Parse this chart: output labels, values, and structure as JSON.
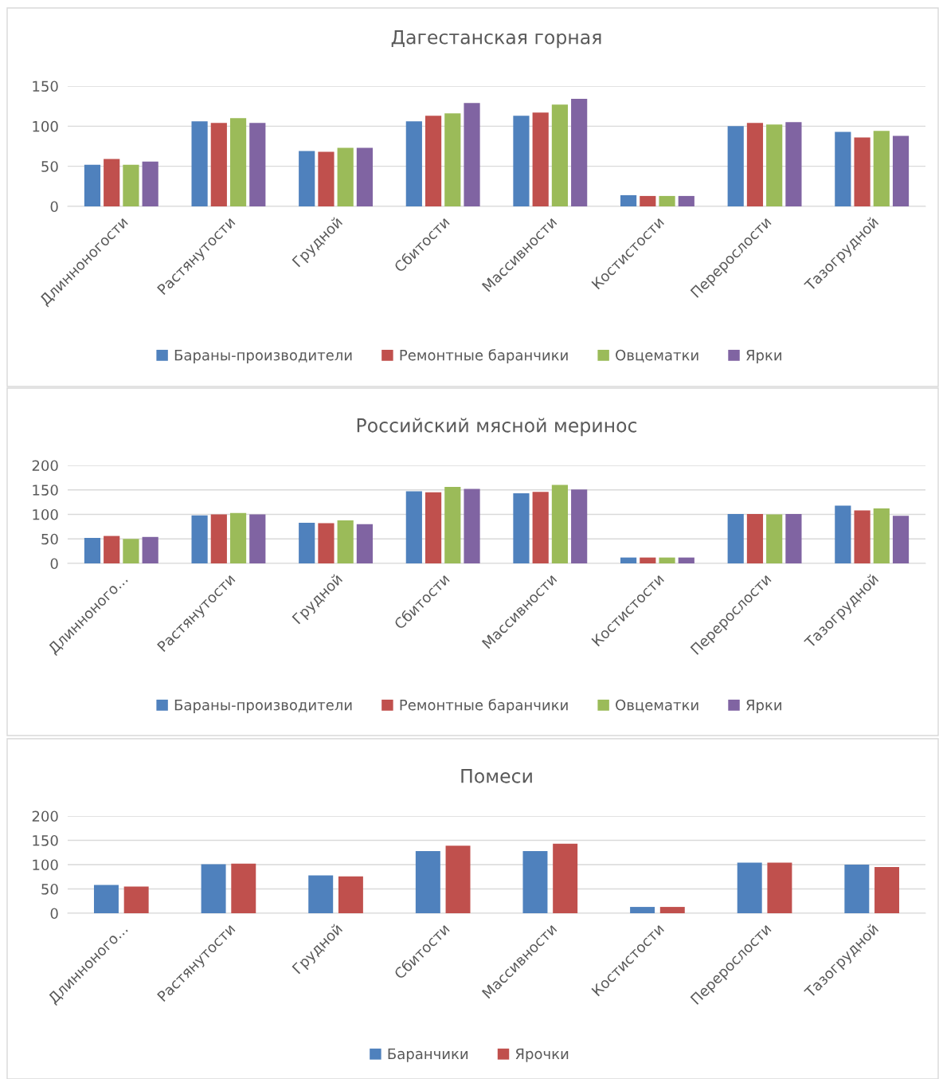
{
  "chart_data": [
    {
      "type": "bar",
      "title": "Дагестанская горная",
      "categories": [
        "Длинноногости",
        "Растянутости",
        "Грудной",
        "Сбитости",
        "Массивности",
        "Костистости",
        "Перерослости",
        "Тазогрудной"
      ],
      "ylim": [
        0,
        150
      ],
      "yticks": [
        0,
        50,
        100,
        150
      ],
      "grid": "y",
      "legend": "bottom",
      "series": [
        {
          "name": "Бараны-производители",
          "color": "#4f81bd",
          "values": [
            52,
            106,
            69,
            106,
            113,
            14,
            100,
            93
          ]
        },
        {
          "name": "Ремонтные баранчики",
          "color": "#c0504d",
          "values": [
            59,
            104,
            68,
            113,
            117,
            13,
            104,
            86
          ]
        },
        {
          "name": "Овцематки",
          "color": "#9bbb59",
          "values": [
            52,
            110,
            73,
            116,
            127,
            13,
            102,
            94
          ]
        },
        {
          "name": "Ярки",
          "color": "#8064a2",
          "values": [
            56,
            104,
            73,
            129,
            134,
            13,
            105,
            88
          ]
        }
      ]
    },
    {
      "type": "bar",
      "title": "Российский мясной меринос",
      "categories": [
        "Длинноного...",
        "Растянутости",
        "Грудной",
        "Сбитости",
        "Массивности",
        "Костистости",
        "Перерослости",
        "Тазогрудной"
      ],
      "ylim": [
        0,
        200
      ],
      "yticks": [
        0,
        50,
        100,
        150,
        200
      ],
      "grid": "y",
      "legend": "bottom",
      "series": [
        {
          "name": "Бараны-производители",
          "color": "#4f81bd",
          "values": [
            52,
            98,
            83,
            147,
            143,
            12,
            101,
            118
          ]
        },
        {
          "name": "Ремонтные баранчики",
          "color": "#c0504d",
          "values": [
            56,
            100,
            82,
            145,
            146,
            12,
            101,
            108
          ]
        },
        {
          "name": "Овцематки",
          "color": "#9bbb59",
          "values": [
            50,
            103,
            88,
            156,
            160,
            12,
            100,
            112
          ]
        },
        {
          "name": "Ярки",
          "color": "#8064a2",
          "values": [
            54,
            100,
            80,
            152,
            151,
            12,
            101,
            97
          ]
        }
      ]
    },
    {
      "type": "bar",
      "title": "Помеси",
      "categories": [
        "Длинноного...",
        "Растянутости",
        "Грудной",
        "Сбитости",
        "Массивности",
        "Костистости",
        "Перерослости",
        "Тазогрудной"
      ],
      "ylim": [
        0,
        200
      ],
      "yticks": [
        0,
        50,
        100,
        150,
        200
      ],
      "grid": "y",
      "legend": "bottom",
      "series": [
        {
          "name": "Баранчики",
          "color": "#4f81bd",
          "values": [
            58,
            101,
            78,
            128,
            128,
            13,
            104,
            100
          ]
        },
        {
          "name": "Ярочки",
          "color": "#c0504d",
          "values": [
            55,
            102,
            76,
            139,
            143,
            13,
            104,
            95
          ]
        }
      ]
    }
  ]
}
